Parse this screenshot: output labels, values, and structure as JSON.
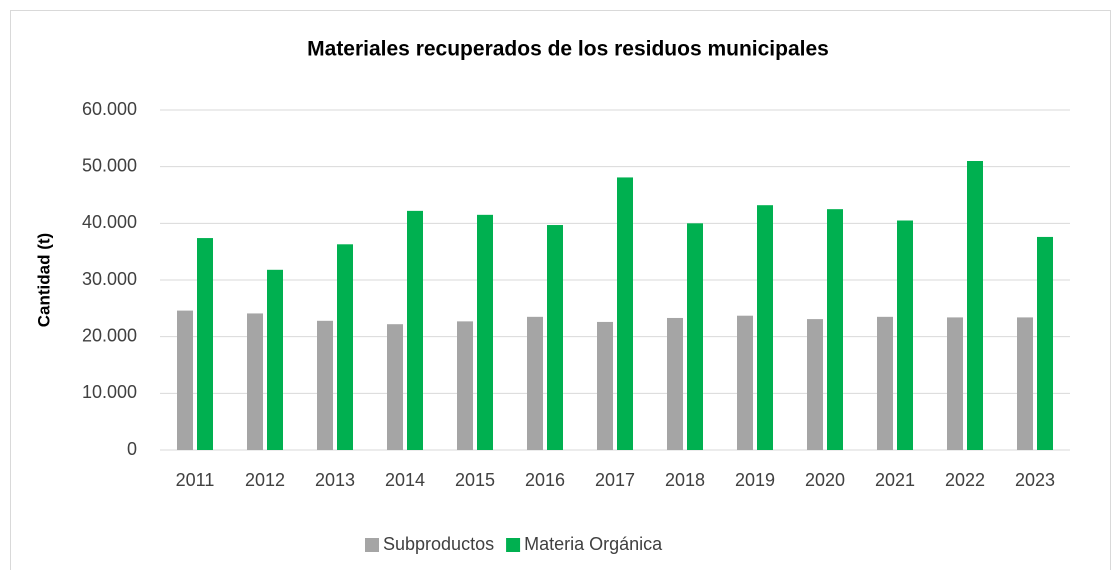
{
  "chart_data": {
    "type": "bar",
    "title": "Materiales recuperados de los residuos municipales",
    "y_label": "Cantidad  (t)",
    "categories": [
      "2011",
      "2012",
      "2013",
      "2014",
      "2015",
      "2016",
      "2017",
      "2018",
      "2019",
      "2020",
      "2021",
      "2022",
      "2023"
    ],
    "series": [
      {
        "name": "Subproductos",
        "color": "#a5a5a5",
        "values": [
          24600,
          24100,
          22800,
          22200,
          22700,
          23500,
          22600,
          23300,
          23700,
          23100,
          23500,
          23400,
          23400
        ]
      },
      {
        "name": "Materia Orgánica",
        "color": "#00b050",
        "values": [
          37400,
          31800,
          36300,
          42200,
          41500,
          39700,
          48100,
          40000,
          43200,
          42500,
          40500,
          51000,
          37600
        ]
      }
    ],
    "ylim": [
      0,
      60000
    ],
    "yticks": [
      0,
      {
        "value": 10000,
        "label": "10.000"
      },
      {
        "value": 20000,
        "label": "20.000"
      },
      {
        "value": 30000,
        "label": "30.000"
      },
      {
        "value": 40000,
        "label": "40.000"
      },
      {
        "value": 50000,
        "label": "50.000"
      },
      {
        "value": 60000,
        "label": "60.000"
      }
    ],
    "grid": true,
    "legend": "bottom"
  }
}
